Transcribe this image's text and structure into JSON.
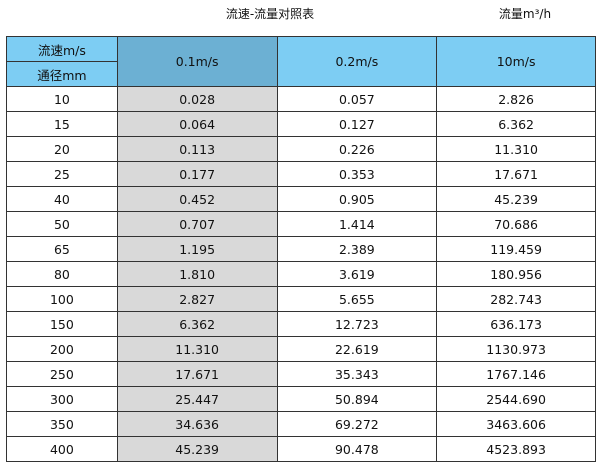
{
  "title": "流速-流量对照表",
  "unit_label": "流量m³/h",
  "table": {
    "corner_top": "流速m/s",
    "corner_bottom": "通径mm",
    "columns": [
      "0.1m/s",
      "0.2m/s",
      "10m/s"
    ],
    "rows": [
      [
        "10",
        "0.028",
        "0.057",
        "2.826"
      ],
      [
        "15",
        "0.064",
        "0.127",
        "6.362"
      ],
      [
        "20",
        "0.113",
        "0.226",
        "11.310"
      ],
      [
        "25",
        "0.177",
        "0.353",
        "17.671"
      ],
      [
        "40",
        "0.452",
        "0.905",
        "45.239"
      ],
      [
        "50",
        "0.707",
        "1.414",
        "70.686"
      ],
      [
        "65",
        "1.195",
        "2.389",
        "119.459"
      ],
      [
        "80",
        "1.810",
        "3.619",
        "180.956"
      ],
      [
        "100",
        "2.827",
        "5.655",
        "282.743"
      ],
      [
        "150",
        "6.362",
        "12.723",
        "636.173"
      ],
      [
        "200",
        "11.310",
        "22.619",
        "1130.973"
      ],
      [
        "250",
        "17.671",
        "35.343",
        "1767.146"
      ],
      [
        "300",
        "25.447",
        "50.894",
        "2544.690"
      ],
      [
        "350",
        "34.636",
        "69.272",
        "3463.606"
      ],
      [
        "400",
        "45.239",
        "90.478",
        "4523.893"
      ]
    ]
  },
  "colors": {
    "header": "#7dcdf3",
    "header_selected": "#6cb0d3",
    "highlight_column": "#d9d9d9"
  }
}
